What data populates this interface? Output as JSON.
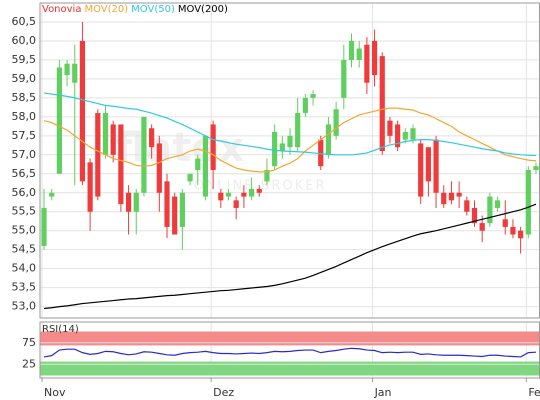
{
  "chart_data": [
    {
      "type": "candlestick",
      "watermark": "flatex",
      "watermark_subtitle": "ONLINE BROKER",
      "categories": [
        "Nov",
        null,
        null,
        null,
        null,
        null,
        null,
        null,
        null,
        null,
        null,
        null,
        null,
        null,
        null,
        null,
        null,
        null,
        null,
        null,
        null,
        null,
        "Dez",
        null,
        null,
        null,
        null,
        null,
        null,
        null,
        null,
        null,
        null,
        null,
        null,
        null,
        null,
        null,
        null,
        null,
        null,
        null,
        null,
        "Jan",
        null,
        null,
        null,
        null,
        null,
        null,
        null,
        null,
        null,
        null,
        null,
        null,
        null,
        null,
        null,
        null,
        null,
        null,
        null,
        "Fe",
        null
      ],
      "ylim": [
        52.7,
        61.0
      ],
      "yticks": [
        {
          "value": 53,
          "label": "53,0"
        },
        {
          "value": 53.5,
          "label": "53,5"
        },
        {
          "value": 54,
          "label": "54,0"
        },
        {
          "value": 54.5,
          "label": "54,5"
        },
        {
          "value": 55,
          "label": "55,0"
        },
        {
          "value": 55.5,
          "label": "55,5"
        },
        {
          "value": 56,
          "label": "56,0"
        },
        {
          "value": 56.5,
          "label": "56,5"
        },
        {
          "value": 57,
          "label": "57,0"
        },
        {
          "value": 57.5,
          "label": "57,5"
        },
        {
          "value": 58,
          "label": "58,0"
        },
        {
          "value": 58.5,
          "label": "58,5"
        },
        {
          "value": 59,
          "label": "59,0"
        },
        {
          "value": 59.5,
          "label": "59,5"
        },
        {
          "value": 60,
          "label": "60,0"
        },
        {
          "value": 60.5,
          "label": "60,5"
        }
      ],
      "grid": true,
      "up_color": "#5fcf5f",
      "down_color": "#ef3b3b",
      "series": [
        {
          "name": "Vonovia",
          "color": "#e8312f",
          "open": [
            54.6,
            55.9,
            56.5,
            59.1,
            58.9,
            60.0,
            56.8,
            58.1,
            57.0,
            57.8,
            57.8,
            56.0,
            55.5,
            56.0,
            57.7,
            57.3,
            56.3,
            55.9,
            55.1,
            56.3,
            56.6,
            55.9,
            57.8,
            56.0,
            55.9,
            55.8,
            56.0,
            55.9,
            56.1,
            56.3,
            56.7,
            57.1,
            57.2,
            57.2,
            58.1,
            58.5,
            57.4,
            57.0,
            57.5,
            58.5,
            59.5,
            59.5,
            59.9,
            60.0,
            59.6,
            57.9,
            57.8,
            57.4,
            57.4,
            57.3,
            57.2,
            57.4,
            56.0,
            56.0,
            56.0,
            55.8,
            55.6,
            55.2,
            55.2,
            55.6,
            55.3,
            55.1,
            55.0,
            54.9,
            56.6
          ],
          "high": [
            56.1,
            56.1,
            59.5,
            59.5,
            59.9,
            60.5,
            56.9,
            58.2,
            58.3,
            57.9,
            57.8,
            56.2,
            56.1,
            58.0,
            57.8,
            57.5,
            56.5,
            56.0,
            56.1,
            56.5,
            57.0,
            57.5,
            57.9,
            56.1,
            56.1,
            55.9,
            56.2,
            56.4,
            56.2,
            56.9,
            57.8,
            57.5,
            57.7,
            58.5,
            58.6,
            58.7,
            57.5,
            58.0,
            58.4,
            59.9,
            60.2,
            60.0,
            60.1,
            60.3,
            59.7,
            58.0,
            57.9,
            57.7,
            57.8,
            57.4,
            57.2,
            57.5,
            56.2,
            56.3,
            56.3,
            55.9,
            55.8,
            55.4,
            56.0,
            55.9,
            55.8,
            55.3,
            55.1,
            56.7,
            56.8
          ],
          "low": [
            54.5,
            55.8,
            56.5,
            58.8,
            56.2,
            56.2,
            55.0,
            55.8,
            56.9,
            56.8,
            55.5,
            54.9,
            54.9,
            55.9,
            56.9,
            55.5,
            54.8,
            54.9,
            54.5,
            56.2,
            56.2,
            55.8,
            56.1,
            55.6,
            55.8,
            55.3,
            55.6,
            55.8,
            55.9,
            56.2,
            56.6,
            56.9,
            57.0,
            57.1,
            58.0,
            58.3,
            56.6,
            56.9,
            57.4,
            58.2,
            59.3,
            59.3,
            58.6,
            58.8,
            57.0,
            57.3,
            57.1,
            57.3,
            57.3,
            55.7,
            55.9,
            55.6,
            55.6,
            55.7,
            55.6,
            55.4,
            55.1,
            54.7,
            55.1,
            55.5,
            54.9,
            54.8,
            54.4,
            54.8,
            56.5
          ],
          "close": [
            55.6,
            56.0,
            59.3,
            59.4,
            59.4,
            56.3,
            55.5,
            55.9,
            58.1,
            57.0,
            55.7,
            55.5,
            56.0,
            58.0,
            57.2,
            56.0,
            55.1,
            54.9,
            56.0,
            56.5,
            56.9,
            57.5,
            56.6,
            55.8,
            56.0,
            55.6,
            55.9,
            56.1,
            56.0,
            56.6,
            57.6,
            57.3,
            57.5,
            58.1,
            58.5,
            58.6,
            56.7,
            57.8,
            58.2,
            59.5,
            60.0,
            59.8,
            58.9,
            59.1,
            57.1,
            57.5,
            57.2,
            57.6,
            57.7,
            55.9,
            56.3,
            56.0,
            55.7,
            55.8,
            55.9,
            55.5,
            55.2,
            55.0,
            55.9,
            55.8,
            55.1,
            54.9,
            54.8,
            56.6,
            56.7
          ]
        },
        {
          "name": "MOV(20)",
          "color": "#f0a830",
          "values": [
            57.9,
            57.85,
            57.75,
            57.65,
            57.5,
            57.35,
            57.2,
            57.1,
            57.0,
            56.9,
            56.85,
            56.8,
            56.72,
            56.7,
            56.72,
            56.8,
            56.9,
            56.95,
            57.0,
            57.1,
            57.15,
            57.1,
            57.0,
            56.85,
            56.75,
            56.65,
            56.6,
            56.57,
            56.55,
            56.55,
            56.6,
            56.7,
            56.78,
            56.9,
            57.1,
            57.25,
            57.4,
            57.55,
            57.7,
            57.85,
            57.95,
            58.05,
            58.1,
            58.15,
            58.2,
            58.23,
            58.23,
            58.2,
            58.18,
            58.1,
            58.05,
            57.95,
            57.85,
            57.75,
            57.6,
            57.5,
            57.4,
            57.3,
            57.2,
            57.1,
            57.0,
            56.95,
            56.9,
            56.86,
            56.84
          ]
        },
        {
          "name": "MOV(50)",
          "color": "#33c8dc",
          "values": [
            58.63,
            58.6,
            58.57,
            58.54,
            58.5,
            58.45,
            58.4,
            58.35,
            58.3,
            58.28,
            58.25,
            58.22,
            58.2,
            58.15,
            58.1,
            58.03,
            57.97,
            57.88,
            57.8,
            57.7,
            57.6,
            57.5,
            57.4,
            57.36,
            57.32,
            57.28,
            57.25,
            57.22,
            57.19,
            57.15,
            57.12,
            57.1,
            57.09,
            57.08,
            57.07,
            57.05,
            57.03,
            57.01,
            57.0,
            57.0,
            57.0,
            57.02,
            57.05,
            57.12,
            57.2,
            57.26,
            57.3,
            57.35,
            57.38,
            57.4,
            57.4,
            57.38,
            57.35,
            57.32,
            57.28,
            57.24,
            57.2,
            57.16,
            57.13,
            57.1,
            57.05,
            57.02,
            57.0,
            56.99,
            56.98
          ]
        },
        {
          "name": "MOV(200)",
          "color": "#000000",
          "values": [
            52.95,
            52.97,
            53.0,
            53.02,
            53.05,
            53.08,
            53.1,
            53.12,
            53.14,
            53.16,
            53.18,
            53.2,
            53.21,
            53.23,
            53.25,
            53.27,
            53.29,
            53.3,
            53.32,
            53.34,
            53.36,
            53.38,
            53.4,
            53.42,
            53.43,
            53.45,
            53.47,
            53.49,
            53.51,
            53.53,
            53.56,
            53.6,
            53.65,
            53.7,
            53.75,
            53.82,
            53.9,
            53.98,
            54.06,
            54.15,
            54.24,
            54.33,
            54.42,
            54.5,
            54.58,
            54.65,
            54.72,
            54.79,
            54.86,
            54.92,
            54.96,
            55.0,
            55.05,
            55.1,
            55.15,
            55.2,
            55.25,
            55.3,
            55.35,
            55.4,
            55.45,
            55.5,
            55.55,
            55.62,
            55.7
          ]
        }
      ]
    },
    {
      "type": "line",
      "title": "RSI(14)",
      "ylim": [
        0,
        100
      ],
      "yticks": [
        25,
        75
      ],
      "bands": [
        {
          "range": [
            70,
            100
          ],
          "color": "#f58a8a"
        },
        {
          "range": [
            0,
            30
          ],
          "color": "#7fd87f"
        }
      ],
      "series": [
        {
          "color": "#2a2acc",
          "values": [
            42,
            45,
            58,
            60,
            60,
            52,
            48,
            50,
            55,
            54,
            50,
            47,
            49,
            54,
            53,
            50,
            47,
            46,
            50,
            52,
            53,
            55,
            52,
            50,
            50,
            49,
            50,
            51,
            50,
            52,
            55,
            54,
            55,
            57,
            58,
            58,
            52,
            55,
            57,
            60,
            62,
            61,
            58,
            57,
            52,
            53,
            52,
            53,
            53,
            48,
            49,
            47,
            46,
            46,
            46,
            45,
            44,
            43,
            46,
            46,
            44,
            43,
            42,
            52,
            53
          ]
        }
      ]
    }
  ]
}
